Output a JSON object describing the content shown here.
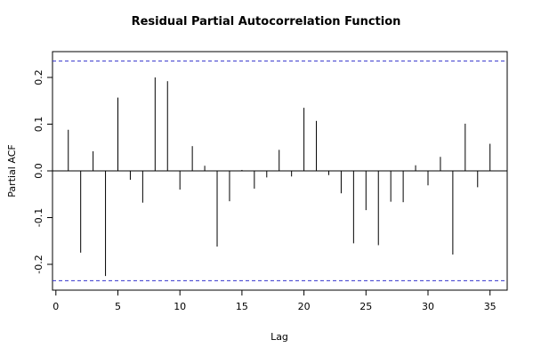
{
  "chart_data": {
    "type": "bar",
    "title": "Residual Partial Autocorrelation Function",
    "xlabel": "Lag",
    "ylabel": "Partial ACF",
    "xlim": [
      0,
      36
    ],
    "ylim": [
      -0.25,
      0.25
    ],
    "xticks": [
      0,
      5,
      10,
      15,
      20,
      25,
      30,
      35
    ],
    "yticks": [
      -0.2,
      -0.1,
      0.0,
      0.1,
      0.2
    ],
    "ytick_labels": [
      "-0.2",
      "-0.1",
      "0.0",
      "0.1",
      "0.2"
    ],
    "confidence_bound": 0.235,
    "ci_color": "#3333cc",
    "lags": [
      1,
      2,
      3,
      4,
      5,
      6,
      7,
      8,
      9,
      10,
      11,
      12,
      13,
      14,
      15,
      16,
      17,
      18,
      19,
      20,
      21,
      22,
      23,
      24,
      25,
      26,
      27,
      28,
      29,
      30,
      31,
      32,
      33,
      34,
      35
    ],
    "values": [
      0.088,
      -0.175,
      0.042,
      -0.225,
      0.157,
      -0.019,
      -0.068,
      0.2,
      0.192,
      -0.04,
      0.053,
      0.011,
      -0.162,
      -0.065,
      0.002,
      -0.038,
      -0.014,
      0.045,
      -0.012,
      0.135,
      0.107,
      -0.009,
      -0.048,
      -0.155,
      -0.084,
      -0.159,
      -0.066,
      -0.067,
      0.012,
      -0.031,
      0.03,
      -0.179,
      0.101,
      -0.035,
      0.058
    ],
    "grid": false,
    "legend": "none"
  }
}
